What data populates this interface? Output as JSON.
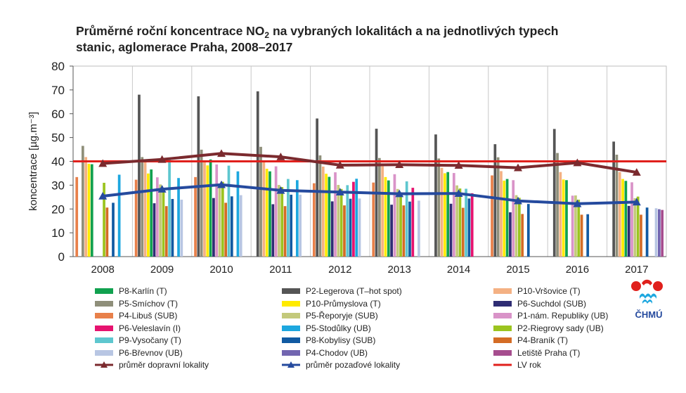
{
  "chart_data": {
    "type": "bar",
    "title": "Průměrné roční koncentrace NO2 na vybraných lokalitách a na jednotlivých typech stanic, aglomerace Praha, 2008–2017",
    "title_main": "Průměrné roční koncentrace NO",
    "title_subscript": "2",
    "title_rest": " na vybraných lokalitách a na jednotlivých typech",
    "title_line2": "stanic, aglomerace Praha, 2008–2017",
    "ylabel": "koncentrace [µg.m⁻³]",
    "xlabel": "",
    "ylim": [
      0,
      80
    ],
    "yticks": [
      "0",
      "10",
      "20",
      "30",
      "40",
      "50",
      "60",
      "70",
      "80"
    ],
    "grid": "vertical lines between years",
    "legend_position": "bottom",
    "categories": [
      "2008",
      "2009",
      "2010",
      "2011",
      "2012",
      "2013",
      "2014",
      "2015",
      "2016",
      "2017"
    ],
    "series": [
      {
        "name": "P4-Libuš (SUB)",
        "color": "#e8804a",
        "values": [
          33.4,
          32.3,
          33.4,
          null,
          30.8,
          31.1,
          null,
          34.1,
          null,
          null
        ]
      },
      {
        "name": "P2-Legerova (T–hot spot)",
        "color": "#555555",
        "values": [
          null,
          68.0,
          67.3,
          69.4,
          58.0,
          53.7,
          51.3,
          47.2,
          53.6,
          48.3
        ]
      },
      {
        "name": "P5-Smíchov (T)",
        "color": "#8f8f7a",
        "values": [
          46.5,
          41.8,
          44.9,
          46.1,
          42.5,
          41.4,
          41.2,
          41.7,
          43.5,
          42.8
        ]
      },
      {
        "name": "P10-Vršovice (T)",
        "color": "#f4b183",
        "values": [
          41.8,
          39.7,
          40.4,
          40.2,
          37.8,
          37.9,
          37.3,
          35.9,
          35.5,
          35.5
        ]
      },
      {
        "name": "P10-Průmyslova (T)",
        "color": "#ffeb00",
        "values": [
          39.0,
          34.9,
          38.3,
          36.9,
          34.8,
          33.4,
          35.0,
          31.9,
          32.4,
          32.6
        ]
      },
      {
        "name": "P8-Karlín (T)",
        "color": "#11a14f",
        "values": [
          38.8,
          36.6,
          40.8,
          35.8,
          33.5,
          32.0,
          35.5,
          32.6,
          32.1,
          31.8
        ]
      },
      {
        "name": "P6-Suchdol (SUB)",
        "color": "#2e2c73",
        "values": [
          null,
          22.4,
          24.6,
          22.0,
          23.2,
          21.8,
          22.2,
          18.6,
          null,
          21.3
        ]
      },
      {
        "name": "P1-nám. Republiky (UB)",
        "color": "#d993c8",
        "values": [
          null,
          33.3,
          38.7,
          37.9,
          35.4,
          34.6,
          35.1,
          32.1,
          25.6,
          31.2
        ]
      },
      {
        "name": "P5-Řeporyje (SUB)",
        "color": "#c3c97b",
        "values": [
          null,
          30.3,
          30.6,
          30.1,
          30.1,
          28.4,
          29.9,
          25.8,
          25.7,
          24.5
        ]
      },
      {
        "name": "P2-Riegrovy sady (UB)",
        "color": "#9bc41f",
        "values": [
          31.0,
          28.9,
          31.4,
          29.2,
          28.4,
          27.0,
          28.6,
          24.7,
          23.9,
          25.2
        ]
      },
      {
        "name": "P4-Braník (T)",
        "color": "#d46c25",
        "values": [
          20.6,
          21.2,
          22.6,
          21.2,
          21.5,
          21.5,
          20.5,
          17.9,
          17.6,
          17.6
        ]
      },
      {
        "name": "P9-Vysočany (T)",
        "color": "#5ec7cf",
        "values": [
          null,
          41.3,
          38.2,
          32.6,
          30.0,
          31.6,
          28.5,
          null,
          null,
          null
        ]
      },
      {
        "name": "P8-Kobylisy (SUB)",
        "color": "#115aa2",
        "values": [
          22.6,
          24.2,
          25.3,
          26.0,
          24.3,
          23.1,
          24.4,
          22.1,
          17.8,
          20.6
        ]
      },
      {
        "name": "P6-Veleslavín (I)",
        "color": "#e6136f",
        "values": [
          null,
          null,
          null,
          null,
          31.4,
          28.9,
          26.6,
          null,
          null,
          null
        ]
      },
      {
        "name": "P5-Stodůlky (UB)",
        "color": "#1da7df",
        "values": [
          34.4,
          33.0,
          35.8,
          32.1,
          32.7,
          null,
          null,
          null,
          null,
          null
        ]
      },
      {
        "name": "P6-Břevnov (UB)",
        "color": "#b8c6e3",
        "values": [
          null,
          23.9,
          25.8,
          26.0,
          24.4,
          23.5,
          null,
          null,
          null,
          20.3
        ]
      },
      {
        "name": "P4-Chodov (UB)",
        "color": "#7265b0",
        "values": [
          null,
          null,
          null,
          null,
          null,
          null,
          null,
          null,
          null,
          19.9
        ]
      },
      {
        "name": "Letiště Praha (T)",
        "color": "#a64d8e",
        "values": [
          null,
          null,
          null,
          null,
          null,
          null,
          null,
          null,
          null,
          19.6
        ]
      }
    ],
    "bar_order": [
      "P4-Libuš (SUB)",
      "P2-Legerova (T–hot spot)",
      "P5-Smíchov (T)",
      "P10-Vršovice (T)",
      "P10-Průmyslova (T)",
      "P8-Karlín (T)",
      "P6-Suchdol (SUB)",
      "P1-nám. Republiky (UB)",
      "P5-Řeporyje (SUB)",
      "P2-Riegrovy sady (UB)",
      "P4-Braník (T)",
      "P9-Vysočany (T)",
      "P8-Kobylisy (SUB)",
      "P6-Veleslavín (I)",
      "P5-Stodůlky (UB)",
      "P6-Břevnov (UB)",
      "P4-Chodov (UB)",
      "Letiště Praha (T)"
    ],
    "lines": [
      {
        "name": "průměr dopravní lokality",
        "color": "#7b2a2e",
        "marker": "triangle",
        "values": [
          39.1,
          40.8,
          43.3,
          41.9,
          38.4,
          38.6,
          38.3,
          37.3,
          39.4,
          35.4
        ]
      },
      {
        "name": "průměr pozaďové lokality",
        "color": "#254a9e",
        "marker": "triangle",
        "values": [
          25.4,
          28.3,
          30.2,
          27.8,
          27.1,
          26.4,
          26.5,
          23.4,
          22.2,
          22.9
        ]
      }
    ],
    "limit_line": {
      "name": "LV rok",
      "color": "#e0201c",
      "value": 40
    },
    "legend": [
      {
        "label": "P8-Karlín (T)",
        "color": "#11a14f",
        "kind": "bar"
      },
      {
        "label": "P5-Smíchov (T)",
        "color": "#8f8f7a",
        "kind": "bar"
      },
      {
        "label": "P4-Libuš (SUB)",
        "color": "#e8804a",
        "kind": "bar"
      },
      {
        "label": "P6-Veleslavín (I)",
        "color": "#e6136f",
        "kind": "bar"
      },
      {
        "label": "P9-Vysočany (T)",
        "color": "#5ec7cf",
        "kind": "bar"
      },
      {
        "label": "P6-Břevnov (UB)",
        "color": "#b8c6e3",
        "kind": "bar"
      },
      {
        "label": "průměr dopravní lokality",
        "color": "#7b2a2e",
        "kind": "line-marker"
      },
      {
        "label": "P2-Legerova (T–hot spot)",
        "color": "#555555",
        "kind": "bar"
      },
      {
        "label": "P10-Průmyslova (T)",
        "color": "#ffeb00",
        "kind": "bar"
      },
      {
        "label": "P5-Řeporyje (SUB)",
        "color": "#c3c97b",
        "kind": "bar"
      },
      {
        "label": "P5-Stodůlky (UB)",
        "color": "#1da7df",
        "kind": "bar"
      },
      {
        "label": "P8-Kobylisy (SUB)",
        "color": "#115aa2",
        "kind": "bar"
      },
      {
        "label": "P4-Chodov (UB)",
        "color": "#7265b0",
        "kind": "bar"
      },
      {
        "label": "průměr pozaďové lokality",
        "color": "#254a9e",
        "kind": "line-marker"
      },
      {
        "label": "P10-Vršovice (T)",
        "color": "#f4b183",
        "kind": "bar"
      },
      {
        "label": "P6-Suchdol (SUB)",
        "color": "#2e2c73",
        "kind": "bar"
      },
      {
        "label": "P1-nám. Republiky (UB)",
        "color": "#d993c8",
        "kind": "bar"
      },
      {
        "label": "P2-Riegrovy sady (UB)",
        "color": "#9bc41f",
        "kind": "bar"
      },
      {
        "label": "P4-Braník (T)",
        "color": "#d46c25",
        "kind": "bar"
      },
      {
        "label": "Letiště Praha (T)",
        "color": "#a64d8e",
        "kind": "bar"
      },
      {
        "label": "LV rok",
        "color": "#e0201c",
        "kind": "line"
      }
    ]
  },
  "logo": {
    "text": "ČHMÚ",
    "colors": [
      "#e0201c",
      "#1da7df"
    ]
  }
}
